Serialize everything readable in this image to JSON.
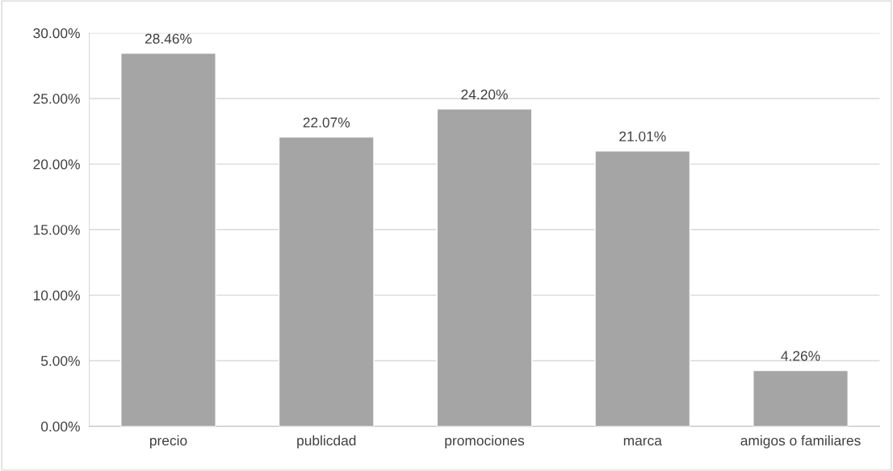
{
  "chart_data": {
    "type": "bar",
    "categories": [
      "precio",
      "publicdad",
      "promociones",
      "marca",
      "amigos o familiares"
    ],
    "values": [
      28.46,
      22.07,
      24.2,
      21.01,
      4.26
    ],
    "value_labels": [
      "28.46%",
      "22.07%",
      "24.20%",
      "21.01%",
      "4.26%"
    ],
    "color": "#a5a5a5",
    "ylim": [
      0,
      30
    ],
    "yticks": [
      {
        "value": 0,
        "label": "0.00%"
      },
      {
        "value": 5,
        "label": "5.00%"
      },
      {
        "value": 10,
        "label": "10.00%"
      },
      {
        "value": 15,
        "label": "15.00%"
      },
      {
        "value": 20,
        "label": "20.00%"
      },
      {
        "value": 25,
        "label": "25.00%"
      },
      {
        "value": 30,
        "label": "30.00%"
      }
    ],
    "grid": "y"
  }
}
